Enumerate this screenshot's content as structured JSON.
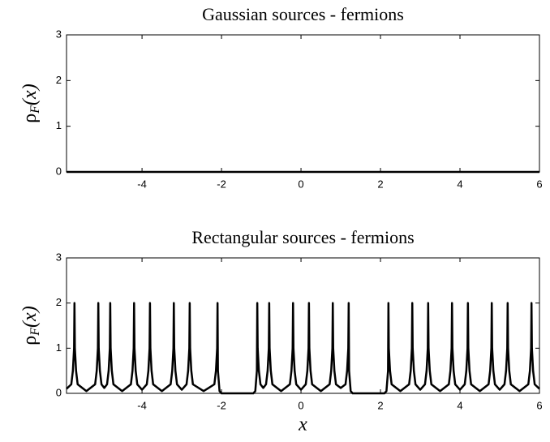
{
  "chart_data": [
    {
      "type": "line",
      "title": "Gaussian sources - fermions",
      "ylabel": "ρ",
      "ylabel_sub": "F",
      "ylabel_tail": "(x)",
      "x": [
        -5.9,
        6
      ],
      "values": [
        0,
        0
      ],
      "color": "#000000",
      "xlim": [
        -5.9,
        6
      ],
      "xticks": [
        -4,
        -2,
        0,
        2,
        4,
        6
      ],
      "ylim": [
        0,
        3
      ],
      "yticks": [
        0,
        1,
        2,
        3
      ],
      "grid": false
    },
    {
      "type": "line",
      "title": "Rectangular sources - fermions",
      "ylabel": "ρ",
      "ylabel_sub": "F",
      "ylabel_tail": "(x)",
      "xlabel": "x",
      "x": [
        -5.9,
        -5.78,
        -5.74,
        -5.71,
        -5.7,
        -5.69,
        -5.66,
        -5.62,
        -5.4,
        -5.18,
        -5.14,
        -5.11,
        -5.1,
        -5.09,
        -5.06,
        -5.02,
        -4.95,
        -4.88,
        -4.84,
        -4.81,
        -4.8,
        -4.79,
        -4.76,
        -4.72,
        -4.5,
        -4.28,
        -4.24,
        -4.21,
        -4.2,
        -4.19,
        -4.16,
        -4.12,
        -4.0,
        -3.88,
        -3.84,
        -3.81,
        -3.8,
        -3.79,
        -3.76,
        -3.72,
        -3.5,
        -3.28,
        -3.24,
        -3.21,
        -3.2,
        -3.19,
        -3.16,
        -3.12,
        -3.0,
        -2.88,
        -2.84,
        -2.81,
        -2.8,
        -2.79,
        -2.76,
        -2.72,
        -2.45,
        -2.18,
        -2.14,
        -2.11,
        -2.1,
        -2.09,
        -2.05,
        -2.0,
        -1.2,
        -1.15,
        -1.11,
        -1.1,
        -1.09,
        -1.06,
        -1.02,
        -0.95,
        -0.88,
        -0.84,
        -0.81,
        -0.8,
        -0.79,
        -0.76,
        -0.72,
        -0.5,
        -0.28,
        -0.24,
        -0.21,
        -0.2,
        -0.19,
        -0.16,
        -0.12,
        0,
        0.12,
        0.16,
        0.19,
        0.2,
        0.21,
        0.24,
        0.28,
        0.5,
        0.72,
        0.76,
        0.79,
        0.8,
        0.81,
        0.84,
        0.88,
        1.0,
        1.12,
        1.16,
        1.19,
        1.2,
        1.21,
        1.25,
        1.3,
        2.1,
        2.15,
        2.19,
        2.2,
        2.21,
        2.24,
        2.28,
        2.5,
        2.72,
        2.76,
        2.79,
        2.8,
        2.81,
        2.84,
        2.88,
        3.0,
        3.12,
        3.16,
        3.19,
        3.2,
        3.21,
        3.24,
        3.28,
        3.5,
        3.72,
        3.76,
        3.79,
        3.8,
        3.81,
        3.84,
        3.88,
        4.0,
        4.12,
        4.16,
        4.19,
        4.2,
        4.21,
        4.24,
        4.28,
        4.5,
        4.72,
        4.76,
        4.79,
        4.8,
        4.81,
        4.84,
        4.88,
        5.0,
        5.12,
        5.16,
        5.19,
        5.2,
        5.21,
        5.24,
        5.28,
        5.5,
        5.72,
        5.76,
        5.79,
        5.8,
        5.81,
        5.84,
        5.88,
        6
      ],
      "values": [
        0.1,
        0.2,
        0.5,
        1,
        2,
        1,
        0.5,
        0.2,
        0.05,
        0.2,
        0.5,
        1,
        2,
        1,
        0.5,
        0.2,
        0.12,
        0.2,
        0.5,
        1,
        2,
        1,
        0.5,
        0.2,
        0.05,
        0.2,
        0.5,
        1,
        2,
        1,
        0.5,
        0.2,
        0.08,
        0.2,
        0.5,
        1,
        2,
        1,
        0.5,
        0.2,
        0.05,
        0.2,
        0.5,
        1,
        2,
        1,
        0.5,
        0.2,
        0.08,
        0.2,
        0.5,
        1,
        2,
        1,
        0.5,
        0.2,
        0.05,
        0.2,
        0.5,
        1,
        2,
        0.5,
        0.05,
        0,
        0,
        0.05,
        0.5,
        2,
        1,
        0.5,
        0.2,
        0.12,
        0.2,
        0.5,
        1,
        2,
        1,
        0.5,
        0.2,
        0.05,
        0.2,
        0.5,
        1,
        2,
        1,
        0.5,
        0.2,
        0.08,
        0.2,
        0.5,
        1,
        2,
        1,
        0.5,
        0.2,
        0.05,
        0.2,
        0.5,
        1,
        2,
        1,
        0.5,
        0.2,
        0.12,
        0.2,
        0.5,
        1,
        2,
        0.5,
        0.05,
        0,
        0,
        0.05,
        0.5,
        2,
        1,
        0.5,
        0.2,
        0.05,
        0.2,
        0.5,
        1,
        2,
        1,
        0.5,
        0.2,
        0.08,
        0.2,
        0.5,
        1,
        2,
        1,
        0.5,
        0.2,
        0.05,
        0.2,
        0.5,
        1,
        2,
        1,
        0.5,
        0.2,
        0.08,
        0.2,
        0.5,
        1,
        2,
        1,
        0.5,
        0.2,
        0.05,
        0.2,
        0.5,
        1,
        2,
        1,
        0.5,
        0.2,
        0.08,
        0.2,
        0.5,
        1,
        2,
        1,
        0.5,
        0.2,
        0.05,
        0.2,
        0.5,
        1,
        2,
        1,
        0.5,
        0.2,
        0.1
      ],
      "color": "#000000",
      "xlim": [
        -5.9,
        6
      ],
      "xticks": [
        -4,
        -2,
        0,
        2,
        4,
        6
      ],
      "ylim": [
        0,
        3
      ],
      "yticks": [
        0,
        1,
        2,
        3
      ],
      "grid": false
    }
  ]
}
